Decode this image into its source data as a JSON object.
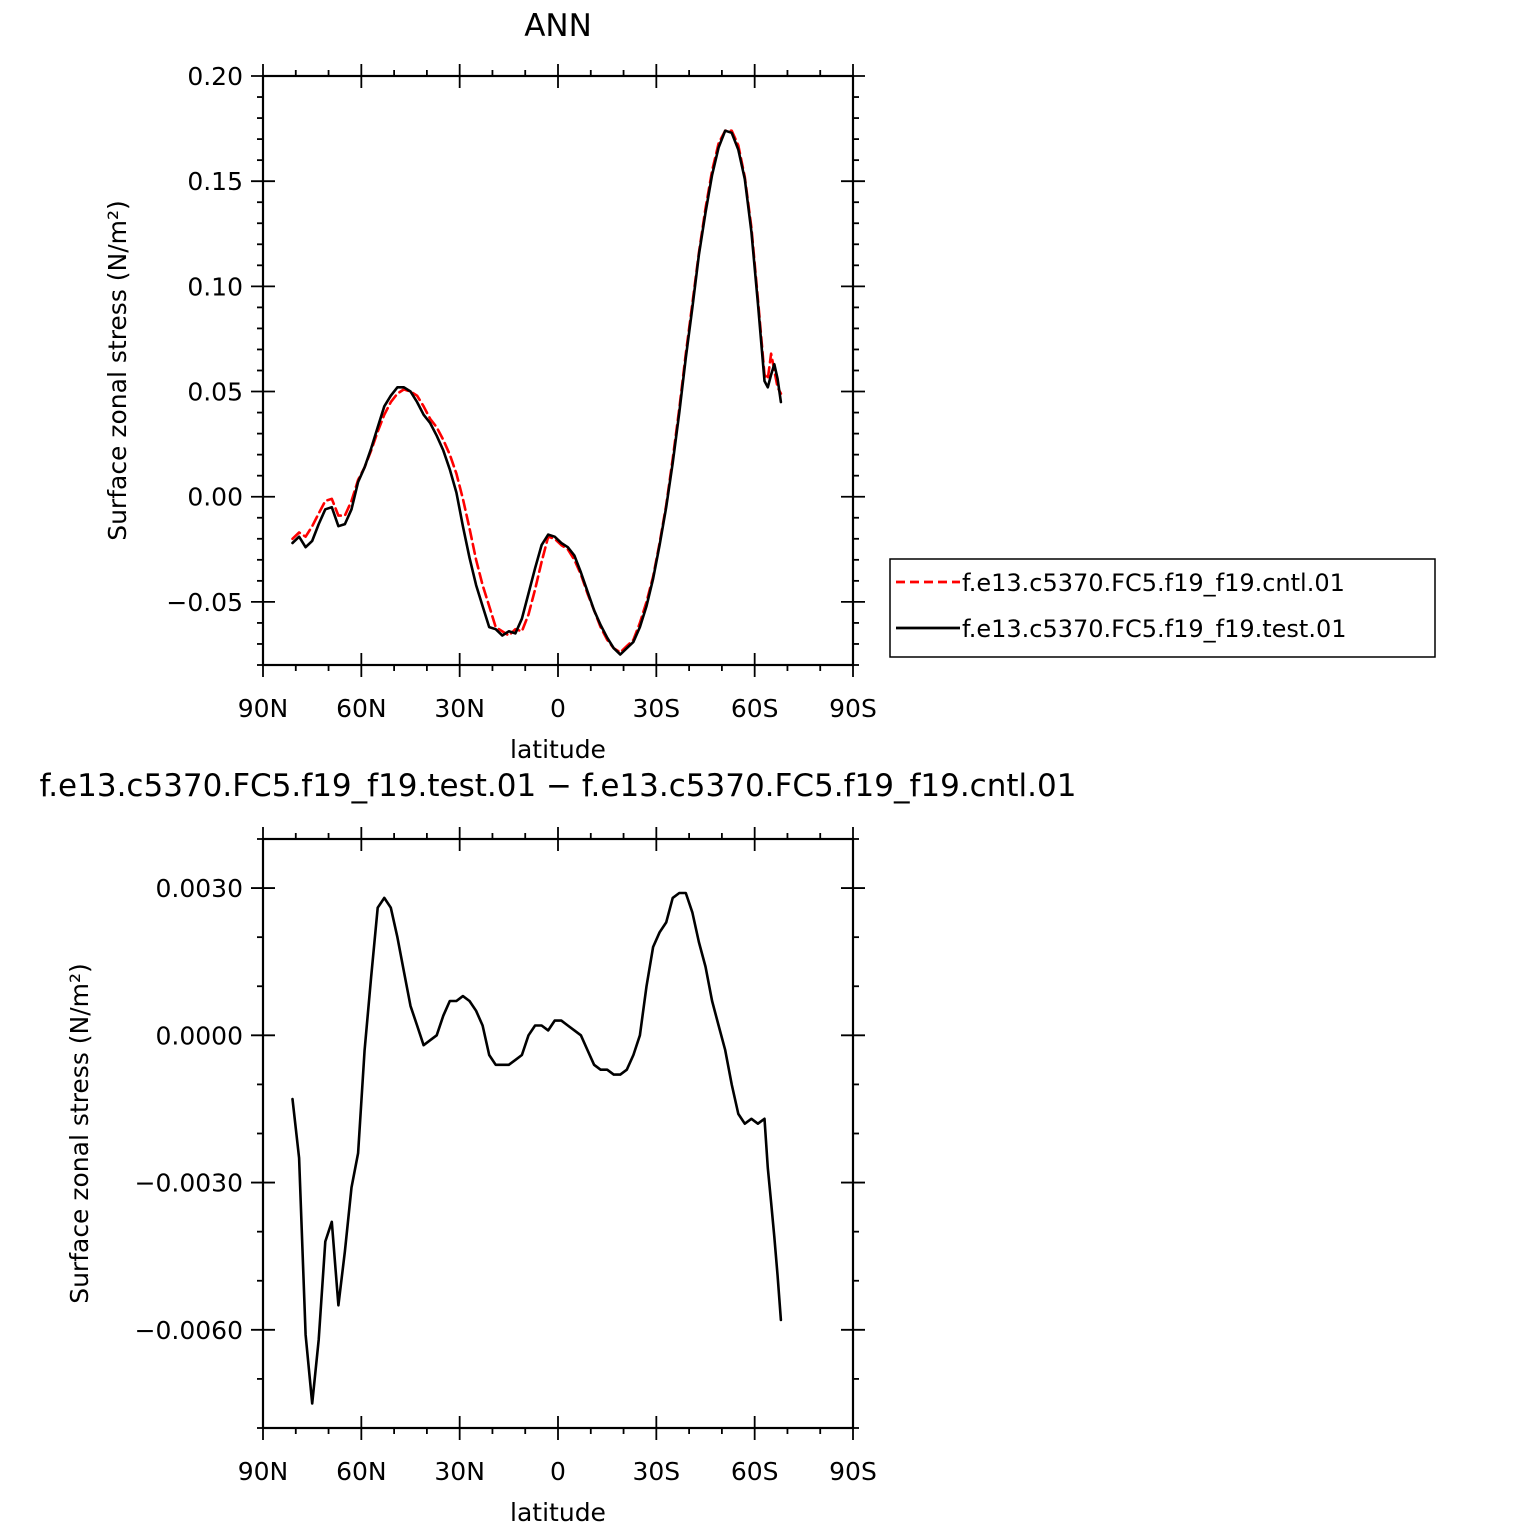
{
  "chart_data": [
    {
      "type": "line",
      "title": "ANN",
      "xlabel": "latitude",
      "ylabel": "Surface zonal stress (N/m²)",
      "xlim": [
        90,
        -90
      ],
      "ylim": [
        -0.08,
        0.2
      ],
      "x_ticks": [
        90,
        60,
        30,
        0,
        -30,
        -60,
        -90
      ],
      "x_tick_labels": [
        "90N",
        "60N",
        "30N",
        "0",
        "30S",
        "60S",
        "90S"
      ],
      "y_ticks": [
        -0.05,
        0.0,
        0.05,
        0.1,
        0.15,
        0.2
      ],
      "y_tick_labels": [
        "−0.05",
        "0.00",
        "0.05",
        "0.10",
        "0.15",
        "0.20"
      ],
      "legend_position": "right",
      "series": [
        {
          "name": "f.e13.c5370.FC5.f19_f19.cntl.01",
          "color": "#ff0000",
          "dash": "dashed",
          "x": [
            81,
            79,
            77,
            75,
            73,
            71,
            69,
            67,
            65,
            63,
            61,
            59,
            57,
            55,
            53,
            51,
            49,
            47,
            45,
            43,
            41,
            39,
            37,
            35,
            33,
            31,
            29,
            27,
            25,
            23,
            21,
            19,
            17,
            15,
            13,
            11,
            9,
            7,
            5,
            3,
            1,
            -1,
            -3,
            -5,
            -7,
            -9,
            -11,
            -13,
            -15,
            -17,
            -19,
            -21,
            -23,
            -25,
            -27,
            -29,
            -31,
            -33,
            -35,
            -37,
            -39,
            -41,
            -43,
            -45,
            -47,
            -49,
            -51,
            -53,
            -55,
            -57,
            -59,
            -61,
            -63,
            -64,
            -65,
            -66,
            -67,
            -68
          ],
          "y": [
            -0.02,
            -0.017,
            -0.019,
            -0.014,
            -0.008,
            -0.002,
            -0.001,
            -0.009,
            -0.009,
            -0.002,
            0.008,
            0.014,
            0.022,
            0.031,
            0.039,
            0.045,
            0.049,
            0.051,
            0.05,
            0.048,
            0.043,
            0.037,
            0.033,
            0.027,
            0.02,
            0.011,
            -0.001,
            -0.015,
            -0.03,
            -0.042,
            -0.052,
            -0.062,
            -0.064,
            -0.066,
            -0.063,
            -0.064,
            -0.056,
            -0.044,
            -0.031,
            -0.019,
            -0.02,
            -0.023,
            -0.025,
            -0.03,
            -0.037,
            -0.046,
            -0.054,
            -0.062,
            -0.068,
            -0.072,
            -0.074,
            -0.071,
            -0.068,
            -0.06,
            -0.05,
            -0.038,
            -0.022,
            -0.004,
            0.018,
            0.042,
            0.068,
            0.092,
            0.116,
            0.137,
            0.155,
            0.168,
            0.174,
            0.174,
            0.167,
            0.152,
            0.128,
            0.094,
            0.058,
            0.056,
            0.068,
            0.06,
            0.052,
            0.049
          ]
        },
        {
          "name": "f.e13.c5370.FC5.f19_f19.test.01",
          "color": "#000000",
          "dash": "solid",
          "x": [
            81,
            79,
            77,
            75,
            73,
            71,
            69,
            67,
            65,
            63,
            61,
            59,
            57,
            55,
            53,
            51,
            49,
            47,
            45,
            43,
            41,
            39,
            37,
            35,
            33,
            31,
            29,
            27,
            25,
            23,
            21,
            19,
            17,
            15,
            13,
            11,
            9,
            7,
            5,
            3,
            1,
            -1,
            -3,
            -5,
            -7,
            -9,
            -11,
            -13,
            -15,
            -17,
            -19,
            -21,
            -23,
            -25,
            -27,
            -29,
            -31,
            -33,
            -35,
            -37,
            -39,
            -41,
            -43,
            -45,
            -47,
            -49,
            -51,
            -53,
            -55,
            -57,
            -59,
            -61,
            -63,
            -64,
            -65,
            -66,
            -67,
            -68
          ],
          "y": [
            -0.022,
            -0.019,
            -0.024,
            -0.021,
            -0.013,
            -0.006,
            -0.005,
            -0.014,
            -0.013,
            -0.006,
            0.007,
            0.014,
            0.023,
            0.033,
            0.043,
            0.048,
            0.052,
            0.052,
            0.05,
            0.045,
            0.039,
            0.035,
            0.029,
            0.022,
            0.013,
            0.002,
            -0.014,
            -0.029,
            -0.042,
            -0.052,
            -0.062,
            -0.063,
            -0.066,
            -0.064,
            -0.065,
            -0.058,
            -0.046,
            -0.034,
            -0.023,
            -0.018,
            -0.019,
            -0.022,
            -0.024,
            -0.028,
            -0.036,
            -0.045,
            -0.054,
            -0.061,
            -0.067,
            -0.072,
            -0.075,
            -0.072,
            -0.069,
            -0.062,
            -0.052,
            -0.039,
            -0.023,
            -0.005,
            0.016,
            0.04,
            0.066,
            0.09,
            0.115,
            0.135,
            0.153,
            0.166,
            0.174,
            0.173,
            0.165,
            0.151,
            0.126,
            0.092,
            0.055,
            0.052,
            0.058,
            0.063,
            0.056,
            0.045
          ]
        }
      ]
    },
    {
      "type": "line",
      "title": "f.e13.c5370.FC5.f19_f19.test.01 − f.e13.c5370.FC5.f19_f19.cntl.01",
      "xlabel": "latitude",
      "ylabel": "Surface zonal stress (N/m²)",
      "xlim": [
        90,
        -90
      ],
      "ylim": [
        -0.008,
        0.004
      ],
      "x_ticks": [
        90,
        60,
        30,
        0,
        -30,
        -60,
        -90
      ],
      "x_tick_labels": [
        "90N",
        "60N",
        "30N",
        "0",
        "30S",
        "60S",
        "90S"
      ],
      "y_ticks": [
        -0.006,
        -0.003,
        0.0,
        0.003
      ],
      "y_tick_labels": [
        "−0.0060",
        "−0.0030",
        "0.0000",
        "0.0030"
      ],
      "series": [
        {
          "color": "#000000",
          "dash": "solid",
          "x": [
            81,
            79,
            77,
            75,
            73,
            71,
            69,
            67,
            65,
            63,
            61,
            59,
            57,
            55,
            53,
            51,
            49,
            47,
            45,
            43,
            41,
            39,
            37,
            35,
            33,
            31,
            29,
            27,
            25,
            23,
            21,
            19,
            17,
            15,
            13,
            11,
            9,
            7,
            5,
            3,
            1,
            -1,
            -3,
            -5,
            -7,
            -9,
            -11,
            -13,
            -15,
            -17,
            -19,
            -21,
            -23,
            -25,
            -27,
            -29,
            -31,
            -33,
            -35,
            -37,
            -39,
            -41,
            -43,
            -45,
            -47,
            -49,
            -51,
            -53,
            -55,
            -57,
            -59,
            -61,
            -63,
            -64,
            -65,
            -66,
            -67,
            -68
          ],
          "y": [
            -0.0013,
            -0.0025,
            -0.0061,
            -0.0075,
            -0.0062,
            -0.0042,
            -0.0038,
            -0.0055,
            -0.0044,
            -0.0031,
            -0.0024,
            -0.0003,
            0.0012,
            0.0026,
            0.0028,
            0.0026,
            0.002,
            0.0013,
            0.0006,
            0.0002,
            -0.0002,
            -0.0001,
            0.0,
            0.0004,
            0.0007,
            0.0007,
            0.0008,
            0.0007,
            0.0005,
            0.0002,
            -0.0004,
            -0.0006,
            -0.0006,
            -0.0006,
            -0.0005,
            -0.0004,
            0.0,
            0.0002,
            0.0002,
            0.0001,
            0.0003,
            0.0003,
            0.0002,
            0.0001,
            0.0,
            -0.0003,
            -0.0006,
            -0.0007,
            -0.0007,
            -0.0008,
            -0.0008,
            -0.0007,
            -0.0004,
            0.0,
            0.001,
            0.0018,
            0.0021,
            0.0023,
            0.0028,
            0.0029,
            0.0029,
            0.0025,
            0.0019,
            0.0014,
            0.0007,
            0.0002,
            -0.0003,
            -0.001,
            -0.0016,
            -0.0018,
            -0.0017,
            -0.0018,
            -0.0017,
            -0.0027,
            -0.0034,
            -0.0041,
            -0.0049,
            -0.0058
          ]
        }
      ]
    }
  ]
}
